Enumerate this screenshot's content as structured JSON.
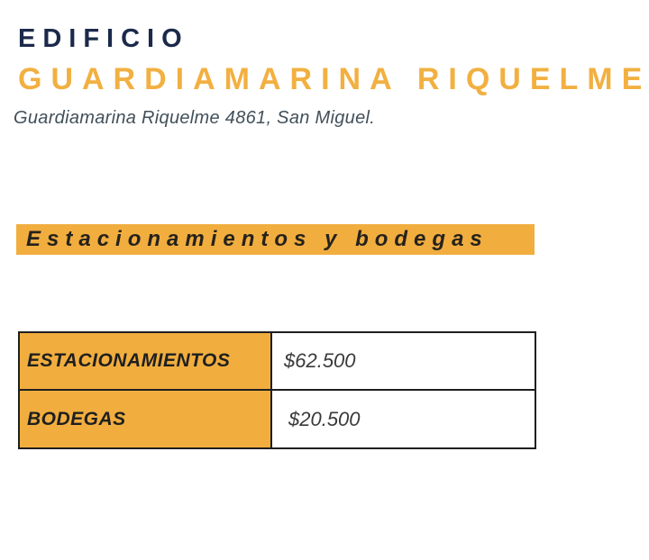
{
  "header": {
    "title_line1": "EDIFICIO",
    "title_line2": "GUARDIAMARINA RIQUELME",
    "address": "Guardiamarina Riquelme 4861, San Miguel."
  },
  "section": {
    "title": "Estacionamientos y bodegas"
  },
  "pricing_table": {
    "rows": [
      {
        "label": "ESTACIONAMIENTOS",
        "value": "$62.500"
      },
      {
        "label": "BODEGAS",
        "value": "$20.500"
      }
    ]
  },
  "colors": {
    "accent_orange": "#F1AE3F",
    "title_orange": "#F2B041",
    "navy": "#1B2A4B",
    "address_gray": "#42505A",
    "table_border": "#1F1F1F",
    "value_text": "#3A3A3A",
    "background": "#FFFFFF"
  }
}
